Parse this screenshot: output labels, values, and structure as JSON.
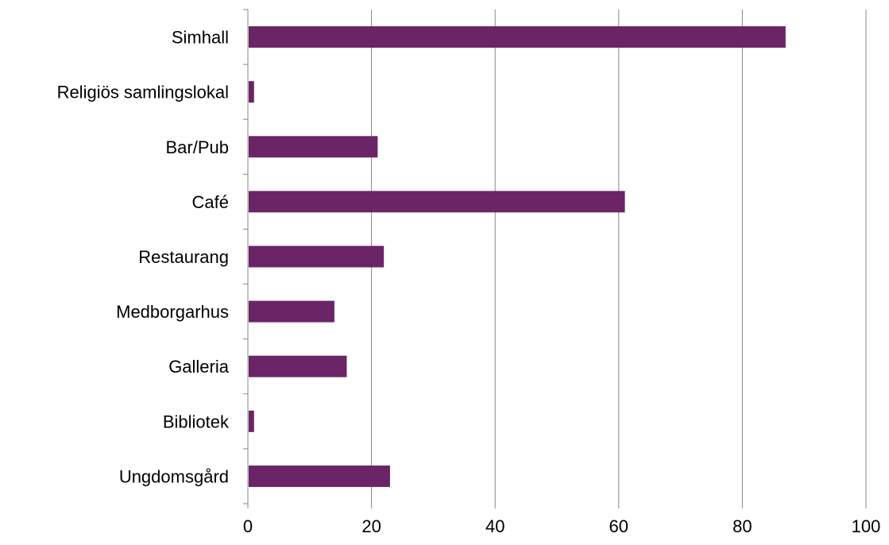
{
  "chart_data": {
    "type": "bar",
    "orientation": "horizontal",
    "categories": [
      "Simhall",
      "Religiös samlingslokal",
      "Bar/Pub",
      "Café",
      "Restaurang",
      "Medborgarhus",
      "Galleria",
      "Bibliotek",
      "Ungdomsgård"
    ],
    "values": [
      87,
      1,
      21,
      61,
      22,
      14,
      16,
      1,
      23
    ],
    "xlim": [
      0,
      100
    ],
    "xticks": [
      "0",
      "20",
      "40",
      "60",
      "80",
      "100"
    ],
    "grid": "vertical",
    "legend": "none",
    "colors": {
      "bar": "#6b2466",
      "grid": "#868686",
      "axis": "#868686"
    }
  }
}
